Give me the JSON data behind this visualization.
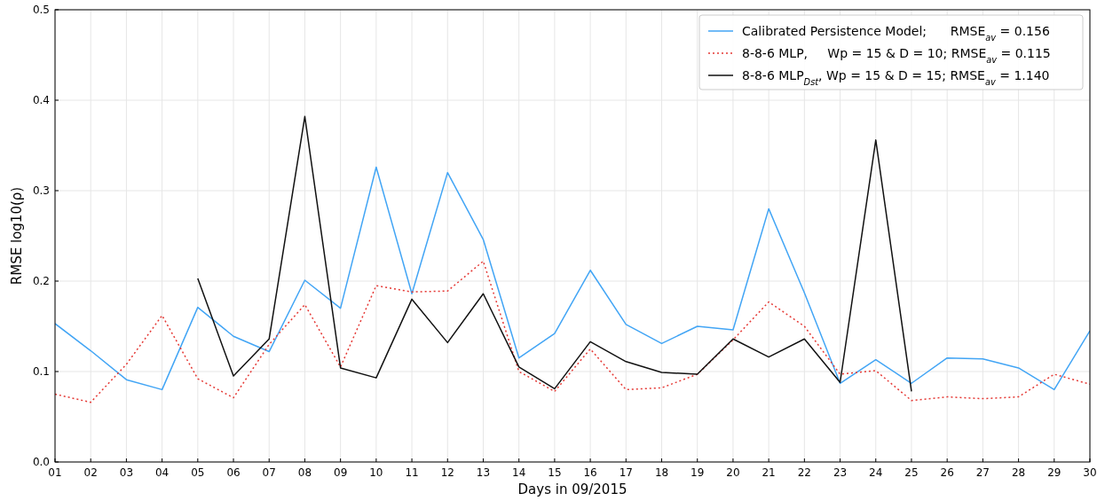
{
  "chart_data": {
    "type": "line",
    "xlabel": "Days in 09/2015",
    "ylabel": "RMSE log10(ρ)",
    "categories": [
      "01",
      "02",
      "03",
      "04",
      "05",
      "06",
      "07",
      "08",
      "09",
      "10",
      "11",
      "12",
      "13",
      "14",
      "15",
      "16",
      "17",
      "18",
      "19",
      "20",
      "21",
      "22",
      "23",
      "24",
      "25",
      "26",
      "27",
      "28",
      "29",
      "30"
    ],
    "series": [
      {
        "name": "Calibrated Persistence Model;      RMSE$_{av}$ = 0.156",
        "color": "#42a5f5",
        "line_style": "solid",
        "values": [
          0.153,
          0.123,
          0.091,
          0.08,
          0.171,
          0.139,
          0.122,
          0.201,
          0.17,
          0.326,
          0.186,
          0.32,
          0.246,
          0.115,
          0.142,
          0.212,
          0.152,
          0.131,
          0.15,
          0.146,
          0.28,
          0.187,
          0.087,
          0.113,
          0.087,
          0.115,
          0.114,
          0.104,
          0.08,
          0.145
        ]
      },
      {
        "name": "8-8-6 MLP,     Wp = 15 & D = 10; RMSE$_{av}$ = 0.115",
        "color": "#e53935",
        "line_style": "dotted",
        "values": [
          0.075,
          0.066,
          0.108,
          0.162,
          0.092,
          0.071,
          0.13,
          0.174,
          0.105,
          0.195,
          0.188,
          0.189,
          0.222,
          0.1,
          0.078,
          0.125,
          0.08,
          0.082,
          0.097,
          0.135,
          0.177,
          0.15,
          0.097,
          0.101,
          0.068,
          0.072,
          0.07,
          0.072,
          0.097,
          0.086
        ]
      },
      {
        "name": "8-8-6 MLP$_{Dst}$, Wp = 15 & D = 15; RMSE$_{av}$ = 1.140",
        "color": "#111111",
        "line_style": "solid",
        "values": [
          null,
          null,
          null,
          null,
          0.203,
          0.095,
          0.136,
          0.382,
          0.104,
          0.093,
          0.18,
          0.132,
          0.186,
          0.105,
          0.081,
          0.133,
          0.111,
          0.099,
          0.097,
          0.136,
          0.116,
          0.136,
          0.088,
          0.356,
          0.078,
          null,
          null,
          null,
          null,
          null
        ]
      }
    ],
    "ylim": [
      0,
      0.5
    ],
    "yticks": [
      {
        "value": 0,
        "label": "0.0"
      },
      0.1,
      0.2,
      0.3,
      0.4,
      0.5
    ],
    "grid": true,
    "legend": "top right"
  }
}
